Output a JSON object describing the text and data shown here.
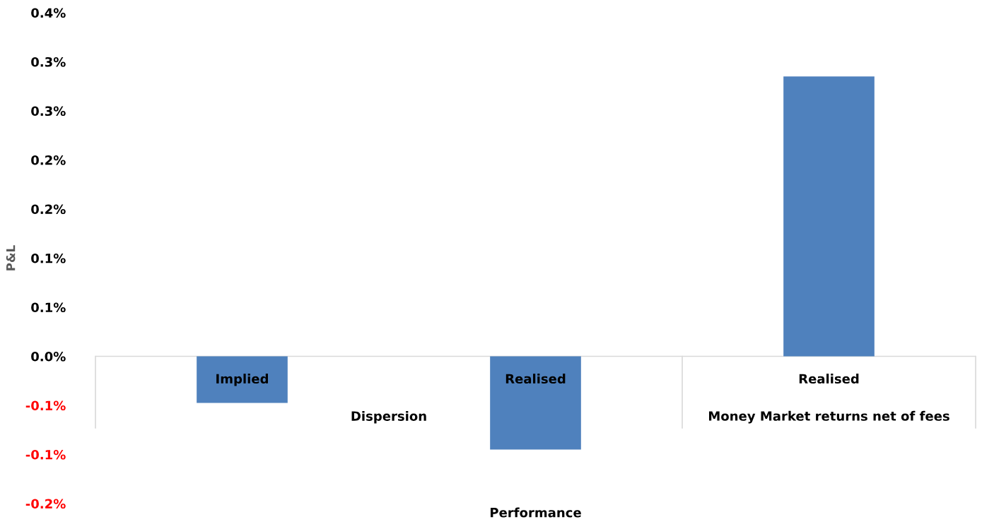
{
  "chart_data": {
    "type": "bar",
    "xlabel": "Performance",
    "ylabel": "P&L",
    "categories": [
      "Implied",
      "Realised",
      "Realised"
    ],
    "values": [
      -0.0475,
      -0.095,
      0.285
    ],
    "color": "#4f81bd",
    "ylim": [
      -0.15,
      0.35
    ],
    "yticks": [
      {
        "value": -0.15,
        "label": "-0.2%"
      },
      {
        "value": -0.1,
        "label": "-0.1%"
      },
      {
        "value": -0.05,
        "label": "-0.1%"
      },
      {
        "value": 0,
        "label": "0.0%"
      },
      {
        "value": 0.05,
        "label": "0.1%"
      },
      {
        "value": 0.1,
        "label": "0.1%"
      },
      {
        "value": 0.15,
        "label": "0.2%"
      },
      {
        "value": 0.2,
        "label": "0.2%"
      },
      {
        "value": 0.25,
        "label": "0.3%"
      },
      {
        "value": 0.3,
        "label": "0.3%"
      },
      {
        "value": 0.35,
        "label": "0.4%"
      }
    ],
    "annotations": [
      "Dispersion",
      "Money Market returns net of fees"
    ],
    "grid": false,
    "legend": false
  }
}
